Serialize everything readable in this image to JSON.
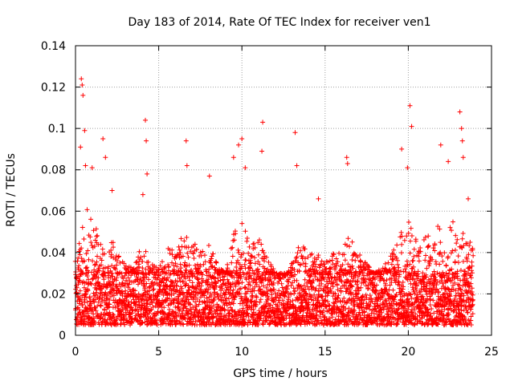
{
  "chart_data": {
    "type": "scatter",
    "title": "Day 183 of 2014, Rate Of TEC Index for receiver ven1",
    "xlabel": "GPS time / hours",
    "ylabel": "ROTI / TECUs",
    "xlim": [
      0,
      25
    ],
    "ylim": [
      0,
      0.14
    ],
    "x_ticks": [
      0,
      5,
      10,
      15,
      20,
      25
    ],
    "x_tick_labels": [
      "0",
      "5",
      "10",
      "15",
      "20",
      "25"
    ],
    "y_ticks": [
      0,
      0.02,
      0.04,
      0.06,
      0.08,
      0.1,
      0.12,
      0.14
    ],
    "y_tick_labels": [
      "0",
      "0.02",
      "0.04",
      "0.06",
      "0.08",
      "0.1",
      "0.12",
      "0.14"
    ],
    "grid": true,
    "marker": "+",
    "series": [
      {
        "name": "ven1",
        "color": "#ff0000",
        "x_range": [
          0,
          23.9
        ],
        "baseline_band": [
          0.005,
          0.03
        ],
        "peaks": [
          {
            "x": 0.35,
            "y": 0.124
          },
          {
            "x": 0.4,
            "y": 0.121
          },
          {
            "x": 0.45,
            "y": 0.116
          },
          {
            "x": 0.55,
            "y": 0.099
          },
          {
            "x": 0.3,
            "y": 0.091
          },
          {
            "x": 0.6,
            "y": 0.082
          },
          {
            "x": 1.0,
            "y": 0.081
          },
          {
            "x": 1.65,
            "y": 0.095
          },
          {
            "x": 1.8,
            "y": 0.086
          },
          {
            "x": 2.2,
            "y": 0.07
          },
          {
            "x": 4.05,
            "y": 0.068
          },
          {
            "x": 4.2,
            "y": 0.104
          },
          {
            "x": 4.25,
            "y": 0.094
          },
          {
            "x": 4.3,
            "y": 0.078
          },
          {
            "x": 6.65,
            "y": 0.094
          },
          {
            "x": 6.7,
            "y": 0.082
          },
          {
            "x": 8.05,
            "y": 0.077
          },
          {
            "x": 9.5,
            "y": 0.086
          },
          {
            "x": 9.8,
            "y": 0.092
          },
          {
            "x": 10.0,
            "y": 0.095
          },
          {
            "x": 10.2,
            "y": 0.081
          },
          {
            "x": 11.2,
            "y": 0.089
          },
          {
            "x": 11.25,
            "y": 0.103
          },
          {
            "x": 13.2,
            "y": 0.098
          },
          {
            "x": 13.3,
            "y": 0.082
          },
          {
            "x": 14.6,
            "y": 0.066
          },
          {
            "x": 16.3,
            "y": 0.086
          },
          {
            "x": 16.35,
            "y": 0.083
          },
          {
            "x": 19.6,
            "y": 0.09
          },
          {
            "x": 19.95,
            "y": 0.081
          },
          {
            "x": 20.1,
            "y": 0.111
          },
          {
            "x": 20.2,
            "y": 0.101
          },
          {
            "x": 21.95,
            "y": 0.092
          },
          {
            "x": 22.4,
            "y": 0.084
          },
          {
            "x": 23.1,
            "y": 0.108
          },
          {
            "x": 23.2,
            "y": 0.1
          },
          {
            "x": 23.25,
            "y": 0.094
          },
          {
            "x": 23.3,
            "y": 0.086
          },
          {
            "x": 23.6,
            "y": 0.066
          }
        ],
        "envelope": [
          [
            0,
            0.03
          ],
          [
            0.5,
            0.065
          ],
          [
            1.0,
            0.055
          ],
          [
            1.5,
            0.05
          ],
          [
            2.0,
            0.05
          ],
          [
            2.5,
            0.045
          ],
          [
            3.0,
            0.035
          ],
          [
            3.5,
            0.032
          ],
          [
            4.0,
            0.045
          ],
          [
            4.5,
            0.035
          ],
          [
            5.0,
            0.033
          ],
          [
            5.5,
            0.045
          ],
          [
            6.0,
            0.04
          ],
          [
            6.5,
            0.05
          ],
          [
            7.0,
            0.048
          ],
          [
            7.5,
            0.04
          ],
          [
            8.0,
            0.045
          ],
          [
            8.5,
            0.035
          ],
          [
            9.0,
            0.03
          ],
          [
            9.5,
            0.05
          ],
          [
            10.0,
            0.055
          ],
          [
            10.5,
            0.045
          ],
          [
            11.0,
            0.048
          ],
          [
            11.5,
            0.04
          ],
          [
            12.0,
            0.03
          ],
          [
            12.5,
            0.025
          ],
          [
            13.0,
            0.035
          ],
          [
            13.5,
            0.045
          ],
          [
            14.0,
            0.04
          ],
          [
            14.5,
            0.04
          ],
          [
            15.0,
            0.035
          ],
          [
            15.5,
            0.04
          ],
          [
            16.0,
            0.04
          ],
          [
            16.5,
            0.05
          ],
          [
            17.0,
            0.04
          ],
          [
            17.5,
            0.035
          ],
          [
            18.0,
            0.03
          ],
          [
            18.5,
            0.035
          ],
          [
            19.0,
            0.04
          ],
          [
            19.5,
            0.05
          ],
          [
            20.0,
            0.055
          ],
          [
            20.5,
            0.05
          ],
          [
            21.0,
            0.05
          ],
          [
            21.5,
            0.055
          ],
          [
            22.0,
            0.055
          ],
          [
            22.5,
            0.06
          ],
          [
            23.0,
            0.055
          ],
          [
            23.5,
            0.05
          ],
          [
            23.9,
            0.045
          ]
        ]
      }
    ]
  }
}
